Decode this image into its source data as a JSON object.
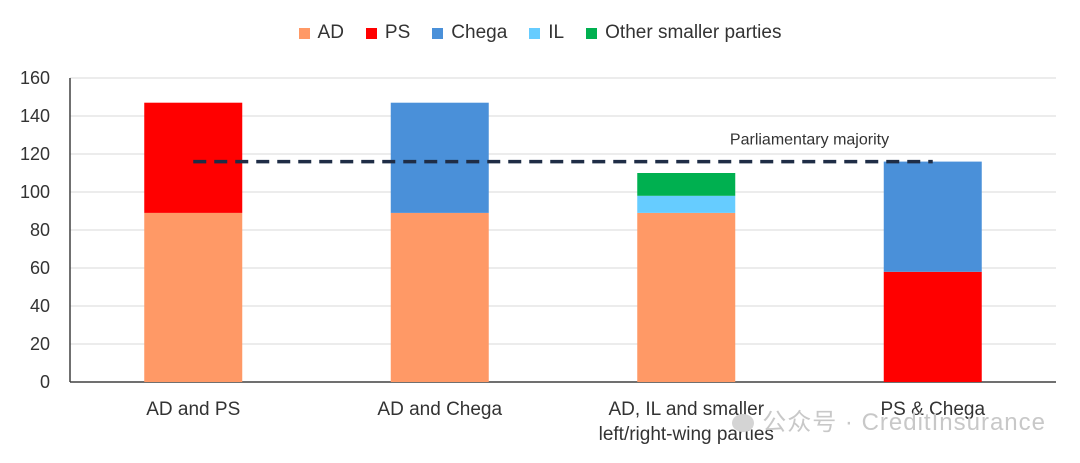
{
  "chart_data": {
    "type": "bar",
    "stacked": true,
    "categories": [
      "AD and PS",
      "AD and Chega",
      "AD, IL and smaller\nleft/right-wing parties",
      "PS & Chega"
    ],
    "series": [
      {
        "name": "AD",
        "color": "#FF9966",
        "values": [
          89,
          89,
          89,
          0
        ]
      },
      {
        "name": "PS",
        "color": "#FF0000",
        "values": [
          58,
          0,
          0,
          58
        ]
      },
      {
        "name": "Chega",
        "color": "#4A90D9",
        "values": [
          0,
          58,
          0,
          58
        ]
      },
      {
        "name": "IL",
        "color": "#66CCFF",
        "values": [
          0,
          0,
          9,
          0
        ]
      },
      {
        "name": "Other smaller parties",
        "color": "#00B050",
        "values": [
          0,
          0,
          12,
          0
        ]
      }
    ],
    "ylim": [
      0,
      160
    ],
    "yticks": [
      0,
      20,
      40,
      60,
      80,
      100,
      120,
      140,
      160
    ],
    "grid": true,
    "legend_position": "top",
    "reference_line": {
      "label": "Parliamentary majority",
      "value": 116,
      "color": "#1F2D46",
      "style": "dashed"
    }
  },
  "watermark": {
    "text": "公众号 · CreditInsurance"
  }
}
